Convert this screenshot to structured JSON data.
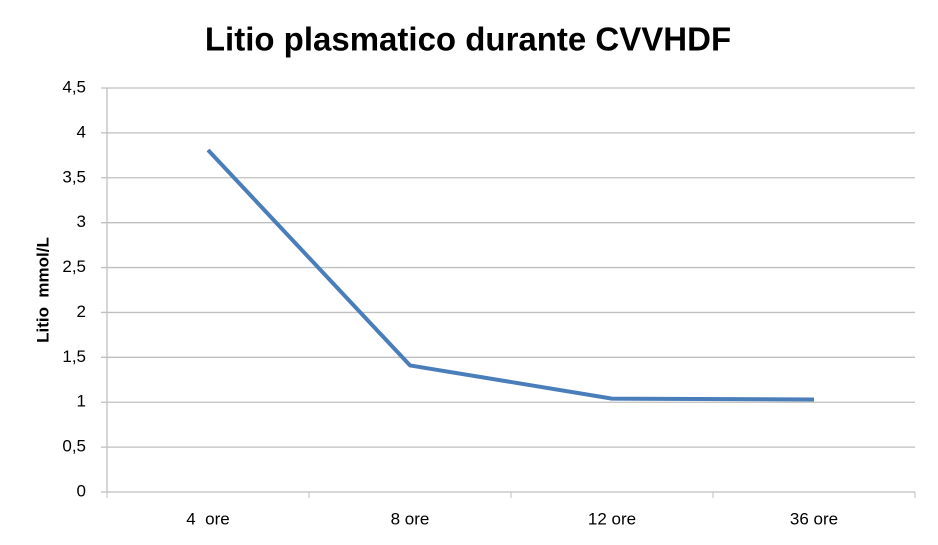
{
  "chart_data": {
    "type": "line",
    "title": "Litio plasmatico durante CVVHDF",
    "y_label": "Litio  mmol/L",
    "categories": [
      "4  ore",
      "8 ore",
      "12 ore",
      "36 ore"
    ],
    "series": [
      {
        "name": "Litio",
        "color": "#4a7ebb",
        "values": [
          3.81,
          1.41,
          1.04,
          1.03
        ]
      }
    ],
    "ylim": [
      0,
      4.5
    ],
    "yticks": [
      0,
      {
        "value": 0.5,
        "label": "0,5"
      },
      1,
      {
        "value": 1.5,
        "label": "1,5"
      },
      2,
      {
        "value": 2.5,
        "label": "2,5"
      },
      3,
      {
        "value": 3.5,
        "label": "3,5"
      },
      4,
      {
        "value": 4.5,
        "label": "4,5"
      }
    ],
    "grid": true
  }
}
